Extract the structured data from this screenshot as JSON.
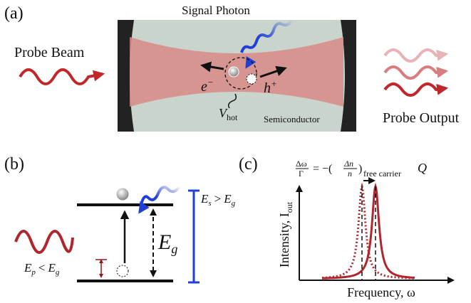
{
  "panel_a": {
    "label": "(a)",
    "signal": "Signal Photon",
    "probe_beam": "Probe Beam",
    "electron": {
      "base": "e",
      "sup": "−"
    },
    "hole": {
      "base": "h",
      "sup": "+"
    },
    "volume": {
      "base": "V",
      "sub": "hot"
    },
    "material": "Semiconductor",
    "probe_output": "Probe Output"
  },
  "panel_b": {
    "label": "(b)",
    "probe_energy": {
      "lhs": "E",
      "lhs_sub": "p",
      "op": "<",
      "rhs": "E",
      "rhs_sub": "g"
    },
    "gap": {
      "base": "E",
      "sub": "g"
    },
    "signal_energy": {
      "lhs": "E",
      "lhs_sub": "s",
      "op": ">",
      "rhs": "E",
      "rhs_sub": "g"
    }
  },
  "panel_c": {
    "label": "(c)",
    "equation": {
      "num1": "Δω",
      "den1": "Γ",
      "eq": "= −(",
      "num2": "Δn",
      "den2": "n",
      "close": ")",
      "sub": "free carrier",
      "tail": "Q"
    },
    "y_label": {
      "base": "Intensity, I",
      "sub": "out"
    },
    "x_label": "Frequency, ω"
  }
}
